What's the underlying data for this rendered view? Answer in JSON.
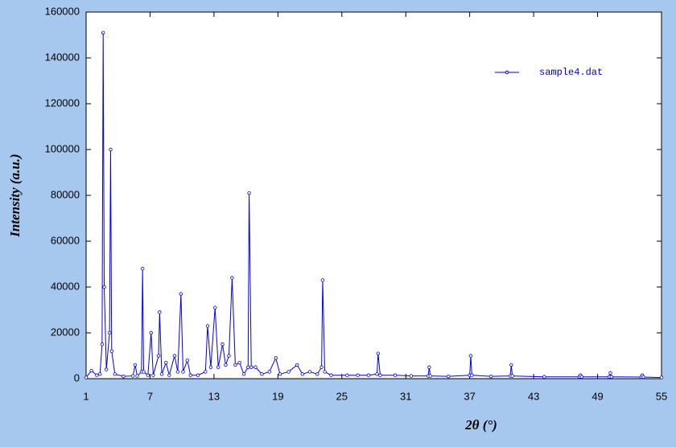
{
  "chart_data": {
    "type": "line",
    "xlabel": "2θ (°)",
    "ylabel": "Intensity (a.u.)",
    "x": [
      1.0,
      1.5,
      2.0,
      2.3,
      2.5,
      2.6,
      2.7,
      2.9,
      3.2,
      3.3,
      3.4,
      3.7,
      4.5,
      5.4,
      5.6,
      5.8,
      6.2,
      6.3,
      6.4,
      6.8,
      7.1,
      7.3,
      7.8,
      7.9,
      8.1,
      8.5,
      8.8,
      9.3,
      9.6,
      9.9,
      10.1,
      10.5,
      10.8,
      11.5,
      12.2,
      12.4,
      12.7,
      13.1,
      13.4,
      13.8,
      14.1,
      14.4,
      14.7,
      15.0,
      15.4,
      15.8,
      16.2,
      16.3,
      16.5,
      16.9,
      17.5,
      18.2,
      18.8,
      19.2,
      20.0,
      20.8,
      21.3,
      22.0,
      22.7,
      23.1,
      23.2,
      23.4,
      24.0,
      25.5,
      26.5,
      27.5,
      28.3,
      28.4,
      28.6,
      30.0,
      31.5,
      33.1,
      33.2,
      33.3,
      35.0,
      37.0,
      37.1,
      37.2,
      39.0,
      40.8,
      40.9,
      41.0,
      44.0,
      47.3,
      47.4,
      47.5,
      50.1,
      50.2,
      50.3,
      53.1,
      53.2,
      53.3,
      55.0
    ],
    "series": [
      {
        "name": "sample4.dat",
        "color": "#0000ee",
        "values": [
          500,
          3500,
          1500,
          2000,
          15000,
          151000,
          40000,
          4000,
          20000,
          100000,
          12000,
          2000,
          1000,
          1200,
          6000,
          1200,
          3000,
          48000,
          3000,
          1500,
          20000,
          1500,
          10000,
          29000,
          2000,
          7000,
          1500,
          10000,
          3000,
          37000,
          3000,
          8000,
          1500,
          1500,
          3000,
          23000,
          5000,
          31000,
          5000,
          15000,
          6000,
          10000,
          44000,
          6000,
          7000,
          2000,
          5000,
          81000,
          5000,
          5000,
          2000,
          3000,
          9000,
          2000,
          3000,
          6000,
          2000,
          3000,
          2000,
          5000,
          43000,
          3000,
          1500,
          1500,
          1500,
          1500,
          2000,
          11000,
          1500,
          1500,
          1200,
          1200,
          5000,
          1200,
          1000,
          1500,
          10000,
          1500,
          1000,
          1200,
          6000,
          1200,
          800,
          800,
          1500,
          800,
          800,
          2500,
          800,
          700,
          1500,
          700,
          500
        ]
      }
    ],
    "xlim": [
      1,
      55
    ],
    "xticks": [
      1,
      7,
      13,
      19,
      25,
      31,
      37,
      43,
      49,
      55
    ],
    "ylim": [
      0,
      160000
    ],
    "yticks": [
      0,
      20000,
      40000,
      60000,
      80000,
      100000,
      120000,
      140000,
      160000
    ],
    "legend": "upper right"
  }
}
